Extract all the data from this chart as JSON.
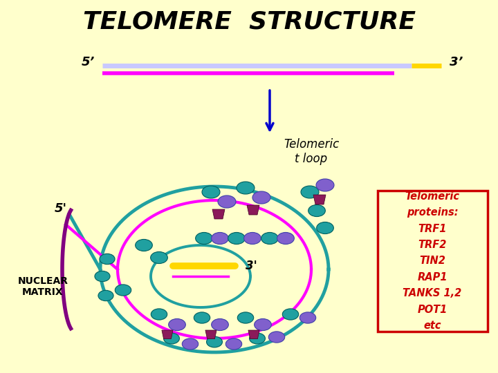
{
  "title": "TELOMERE  STRUCTURE",
  "background_color": "#FFFFCC",
  "title_fontsize": 26,
  "strand_5prime_label": "5’",
  "strand_3prime_label": "3’",
  "loop_5prime_label": "5'",
  "loop_3prime_label": "3'",
  "nuclear_matrix_label": "NUCLEAR\nMATRIX",
  "telomeric_t_loop_label": "Telomeric\nt loop",
  "box_text": "Telomeric\nproteins:\nTRF1\nTRF2\nTIN2\nRAP1\nTANKS 1,2\nPOT1\netc",
  "color_teal": "#20A0A0",
  "color_purple_light": "#8060CC",
  "color_magenta": "#FF00FF",
  "color_dark_purple": "#800080",
  "color_maroon": "#8B1A5A",
  "color_gold": "#FFD700",
  "color_blue_arrow": "#0000CC",
  "color_red_box": "#CC0000",
  "color_lavender_strand": "#C8C8FF",
  "color_black": "#000000"
}
